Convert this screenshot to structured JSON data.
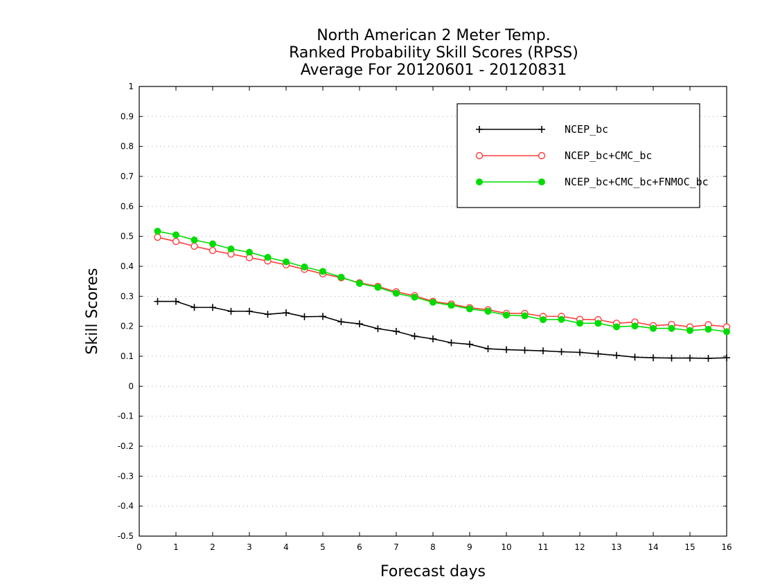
{
  "chart_data": {
    "type": "line",
    "title": [
      "North American 2 Meter Temp.",
      "Ranked Probability Skill Scores (RPSS)",
      "Average For 20120601 - 20120831"
    ],
    "xlabel": "Forecast days",
    "ylabel": "Skill Scores",
    "xlim": [
      0,
      16
    ],
    "ylim": [
      -0.5,
      1
    ],
    "x_ticks": [
      "0",
      "1",
      "2",
      "3",
      "4",
      "5",
      "6",
      "7",
      "8",
      "9",
      "10",
      "11",
      "12",
      "13",
      "14",
      "15",
      "16"
    ],
    "y_ticks": [
      "-0.5",
      "-0.4",
      "-0.3",
      "-0.2",
      "-0.1",
      "0",
      "0.1",
      "0.2",
      "0.3",
      "0.4",
      "0.5",
      "0.6",
      "0.7",
      "0.8",
      "0.9",
      "1"
    ],
    "grid": "horizontal dotted",
    "legend_position": "top-right",
    "x": [
      0.5,
      1,
      1.5,
      2,
      2.5,
      3,
      3.5,
      4,
      4.5,
      5,
      5.5,
      6,
      6.5,
      7,
      7.5,
      8,
      8.5,
      9,
      9.5,
      10,
      10.5,
      11,
      11.5,
      12,
      12.5,
      13,
      13.5,
      14,
      14.5,
      15,
      15.5,
      16
    ],
    "series": [
      {
        "name": "NCEP_bc",
        "color": "#000000",
        "marker": "plus",
        "values": [
          0.283,
          0.283,
          0.263,
          0.263,
          0.25,
          0.25,
          0.24,
          0.245,
          0.232,
          0.233,
          0.215,
          0.208,
          0.192,
          0.183,
          0.167,
          0.158,
          0.145,
          0.14,
          0.125,
          0.122,
          0.12,
          0.118,
          0.115,
          0.113,
          0.108,
          0.103,
          0.097,
          0.095,
          0.094,
          0.094,
          0.093,
          0.095
        ]
      },
      {
        "name": "NCEP_bc+CMC_bc",
        "color": "#ff3c3c",
        "marker": "open-circle",
        "values": [
          0.497,
          0.483,
          0.467,
          0.453,
          0.441,
          0.429,
          0.418,
          0.405,
          0.39,
          0.375,
          0.362,
          0.345,
          0.333,
          0.315,
          0.302,
          0.283,
          0.274,
          0.262,
          0.255,
          0.243,
          0.243,
          0.233,
          0.233,
          0.223,
          0.222,
          0.21,
          0.214,
          0.202,
          0.206,
          0.198,
          0.205,
          0.198
        ]
      },
      {
        "name": "NCEP_bc+CMC_bc+FNMOC_bc",
        "color": "#00dc00",
        "marker": "filled-circle",
        "values": [
          0.517,
          0.505,
          0.488,
          0.475,
          0.458,
          0.447,
          0.43,
          0.415,
          0.398,
          0.383,
          0.364,
          0.343,
          0.33,
          0.31,
          0.297,
          0.28,
          0.27,
          0.258,
          0.25,
          0.237,
          0.235,
          0.222,
          0.223,
          0.21,
          0.21,
          0.198,
          0.201,
          0.193,
          0.193,
          0.186,
          0.19,
          0.182
        ]
      }
    ]
  }
}
